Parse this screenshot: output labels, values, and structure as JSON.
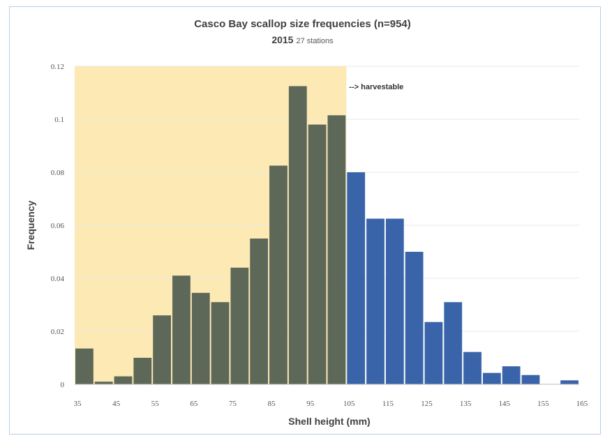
{
  "chart_data": {
    "type": "bar",
    "title": "Casco Bay scallop size frequencies (n=954)",
    "subtitle_year": "2015",
    "subtitle_note": "27 stations",
    "xlabel": "Shell height (mm)",
    "ylabel": "Frequency",
    "ylim": [
      0,
      0.12
    ],
    "yticks": [
      "0",
      "0.02",
      "0.04",
      "0.06",
      "0.08",
      "0.1",
      "0.12"
    ],
    "xtick_labels": [
      "35",
      "45",
      "55",
      "65",
      "75",
      "85",
      "95",
      "105",
      "115",
      "125",
      "135",
      "145",
      "155",
      "165"
    ],
    "categories": [
      35,
      40,
      45,
      50,
      55,
      60,
      65,
      70,
      75,
      80,
      85,
      90,
      95,
      100,
      105,
      110,
      115,
      120,
      125,
      130,
      135,
      140,
      145,
      150,
      155,
      160
    ],
    "values": [
      0.0135,
      0.001,
      0.003,
      0.01,
      0.026,
      0.041,
      0.0345,
      0.031,
      0.044,
      0.055,
      0.0825,
      0.1125,
      0.098,
      0.1015,
      0.08,
      0.0625,
      0.0625,
      0.05,
      0.0235,
      0.031,
      0.0122,
      0.0043,
      0.0068,
      0.0035,
      0.0,
      0.0015
    ],
    "harvestable_from": 105,
    "annotation": "--> harvestable",
    "colors": {
      "sublegal_bar": "#5d6858",
      "harvestable_bar": "#3a64aa",
      "shade": "#fde9b4",
      "grid": "#e8e8e8"
    },
    "grid": true,
    "legend": "none"
  }
}
